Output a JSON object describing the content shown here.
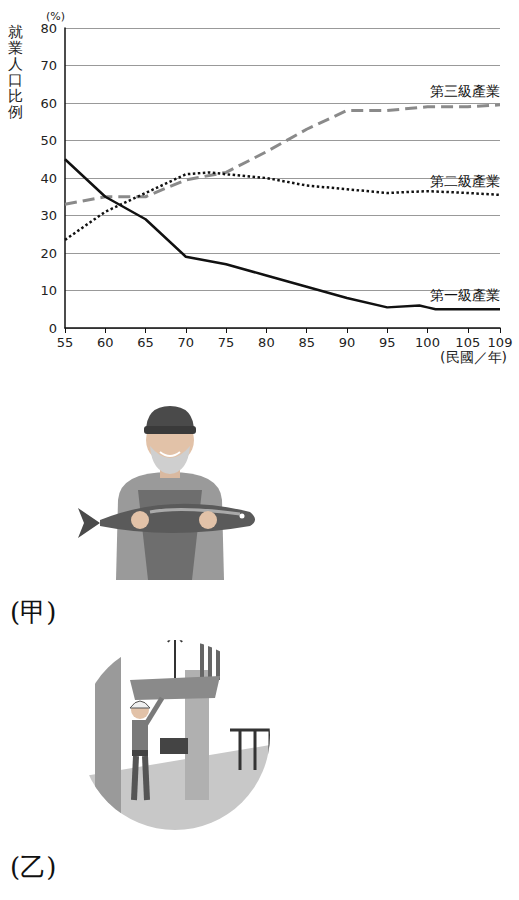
{
  "chart_data": {
    "type": "line",
    "ylabel": "就業人口比例",
    "ylabel_unit": "(%)",
    "xlabel": "(民國／年)",
    "xlim": [
      55,
      109
    ],
    "xticks": [
      55,
      60,
      65,
      70,
      75,
      80,
      85,
      90,
      95,
      100,
      105,
      109
    ],
    "ylim": [
      0,
      80
    ],
    "yticks": [
      0,
      10,
      20,
      30,
      40,
      50,
      60,
      70,
      80
    ],
    "grid": true,
    "series": [
      {
        "name": "第三級產業",
        "color": "#8a8a8a",
        "line_style": "dashed",
        "x": [
          55,
          60,
          65,
          70,
          75,
          80,
          85,
          90,
          95,
          100,
          105,
          109
        ],
        "values": [
          33,
          35,
          35,
          39.5,
          41.5,
          47,
          53,
          58,
          58,
          59,
          59,
          59.5
        ]
      },
      {
        "name": "第二級產業",
        "color": "#111111",
        "line_style": "dotted",
        "x": [
          55,
          60,
          65,
          70,
          73,
          75,
          80,
          85,
          90,
          95,
          100,
          105,
          109
        ],
        "values": [
          23.5,
          31,
          36,
          41,
          41.5,
          41,
          40,
          38,
          37,
          36,
          36.5,
          36,
          35.5
        ]
      },
      {
        "name": "第一級產業",
        "color": "#111111",
        "line_style": "solid",
        "x": [
          55,
          60,
          65,
          70,
          75,
          80,
          85,
          90,
          95,
          99,
          100,
          101,
          105,
          109
        ],
        "values": [
          45,
          35,
          29,
          19,
          17,
          14,
          11,
          8,
          5.5,
          6,
          5.5,
          5,
          5,
          5
        ]
      }
    ]
  },
  "figures": [
    {
      "label": "(甲)"
    },
    {
      "label": "(乙)"
    }
  ]
}
